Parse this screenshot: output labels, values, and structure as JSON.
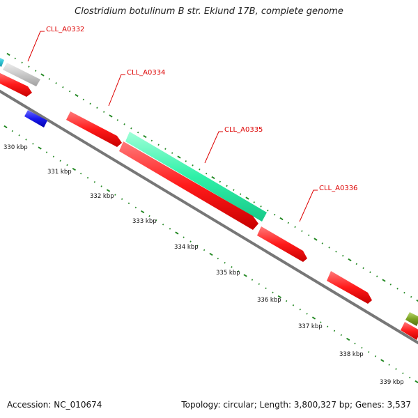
{
  "title": "Clostridium botulinum B str. Eklund 17B, complete genome",
  "footer": {
    "accession": "Accession: NC_010674",
    "summary": "Topology: circular; Length: 3,800,327 bp; Genes: 3,537"
  },
  "colors": {
    "backbone": "#777777",
    "tick": "#228822",
    "label_line": "#dd0000",
    "label_text": "#dd0000",
    "gene_red": "#ff1a1a",
    "gene_teal": "#2ff0a8",
    "gene_gray": "#c8c8c8",
    "gene_cyan": "#35c8d8",
    "gene_blue": "#1a1aee",
    "gene_olive": "#7aa020"
  },
  "scale": {
    "labels": [
      "330 kbp",
      "331 kbp",
      "332 kbp",
      "333 kbp",
      "334 kbp",
      "335 kbp",
      "336 kbp",
      "337 kbp",
      "338 kbp",
      "339 kbp"
    ]
  },
  "gene_labels": [
    {
      "id": "gene-label-cll-a0332",
      "text": "CLL_A0332"
    },
    {
      "id": "gene-label-cll-a0334",
      "text": "CLL_A0334"
    },
    {
      "id": "gene-label-cll-a0335",
      "text": "CLL_A0335"
    },
    {
      "id": "gene-label-cll-a0336",
      "text": "CLL_A0336"
    }
  ],
  "features": [
    {
      "id": "feature-cyan-edge",
      "color": "cyan"
    },
    {
      "id": "feature-gray",
      "color": "gray"
    },
    {
      "id": "feature-red-a",
      "color": "red"
    },
    {
      "id": "feature-blue",
      "color": "blue"
    },
    {
      "id": "feature-red-cll-a0334",
      "color": "red"
    },
    {
      "id": "feature-teal-cll-a0335",
      "color": "teal"
    },
    {
      "id": "feature-red-long",
      "color": "red"
    },
    {
      "id": "feature-red-short",
      "color": "red"
    },
    {
      "id": "feature-red-cll-a0336",
      "color": "red"
    },
    {
      "id": "feature-olive-edge",
      "color": "olive"
    },
    {
      "id": "feature-red-edge",
      "color": "red"
    }
  ]
}
